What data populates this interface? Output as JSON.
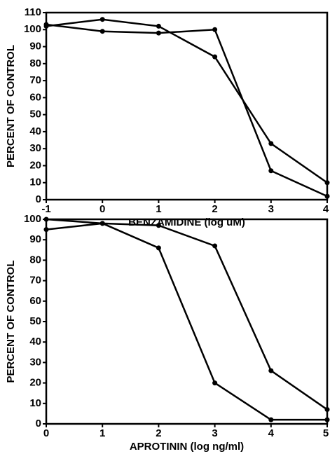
{
  "chart_data": [
    {
      "type": "line",
      "x_label": "BENZAMIDINE (log uM)",
      "y_label": "PERCENT OF CONTROL",
      "x": [
        -1,
        0,
        1,
        2,
        3,
        4
      ],
      "series": [
        {
          "color": "#000000",
          "values": [
            102,
            106,
            102,
            84,
            33,
            10
          ]
        },
        {
          "color": "#000000",
          "values": [
            103,
            99,
            98,
            100,
            17,
            2
          ]
        }
      ],
      "xlim": [
        -1,
        4
      ],
      "xticks": [
        -1,
        0,
        1,
        2,
        3,
        4
      ],
      "ylim": [
        0,
        110
      ],
      "yticks": [
        0,
        10,
        20,
        30,
        40,
        50,
        60,
        70,
        80,
        90,
        100,
        110
      ]
    },
    {
      "type": "line",
      "x_label": "APROTININ (log ng/ml)",
      "y_label": "PERCENT OF CONTROL",
      "x": [
        0,
        1,
        2,
        3,
        4,
        5
      ],
      "series": [
        {
          "color": "#000000",
          "values": [
            100,
            98,
            97,
            87,
            26,
            7
          ]
        },
        {
          "color": "#000000",
          "values": [
            95,
            98,
            86,
            20,
            2,
            2
          ]
        }
      ],
      "xlim": [
        0,
        5
      ],
      "xticks": [
        0,
        1,
        2,
        3,
        4,
        5
      ],
      "ylim": [
        0,
        100
      ],
      "yticks": [
        0,
        10,
        20,
        30,
        40,
        50,
        60,
        70,
        80,
        90,
        100
      ]
    }
  ]
}
